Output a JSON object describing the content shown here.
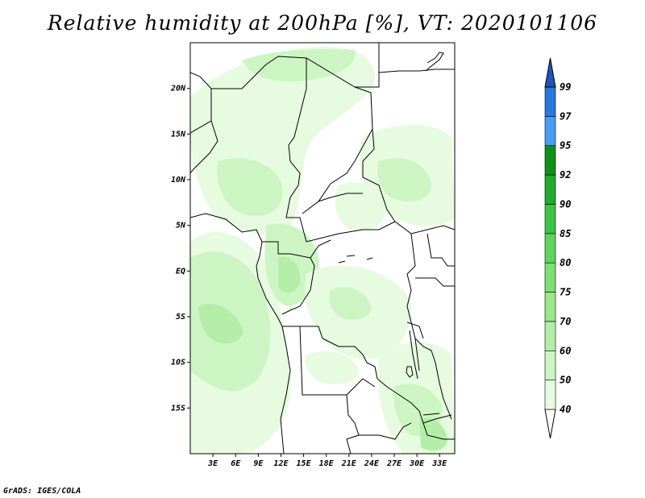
{
  "title": "Relative humidity at 200hPa [%], VT: 2020101106",
  "credit": "GrADS: IGES/COLA",
  "map": {
    "lon_range": [
      0,
      35
    ],
    "lat_range": [
      -20,
      25
    ],
    "y_axis_labels": [
      "20N",
      "15N",
      "10N",
      "5N",
      "EQ",
      "5S",
      "10S",
      "15S"
    ],
    "x_axis_labels": [
      "3E",
      "6E",
      "9E",
      "12E",
      "15E",
      "18E",
      "21E",
      "24E",
      "27E",
      "30E",
      "33E"
    ]
  },
  "colorbar": {
    "levels": [
      "40",
      "50",
      "60",
      "70",
      "75",
      "80",
      "85",
      "90",
      "92",
      "95",
      "97",
      "99"
    ],
    "colors": [
      "#ffffff",
      "#e6fbe0",
      "#cdf5c4",
      "#b4eda8",
      "#9be58c",
      "#7fdd74",
      "#5fd35e",
      "#3ec248",
      "#23aa2e",
      "#128f1a",
      "#4a9cf0",
      "#2a78dc",
      "#1f55b8"
    ]
  }
}
